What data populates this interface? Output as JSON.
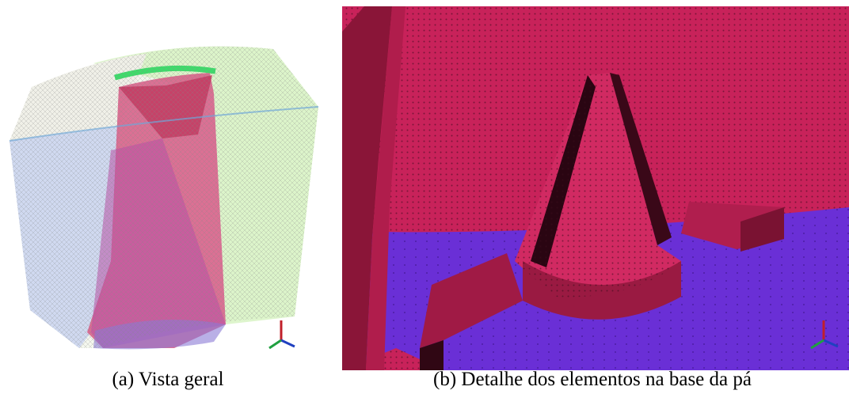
{
  "figure": {
    "panels": [
      {
        "caption": "(a) Vista geral"
      },
      {
        "caption": "(b) Detalhe dos elementos na base da pá"
      }
    ]
  }
}
